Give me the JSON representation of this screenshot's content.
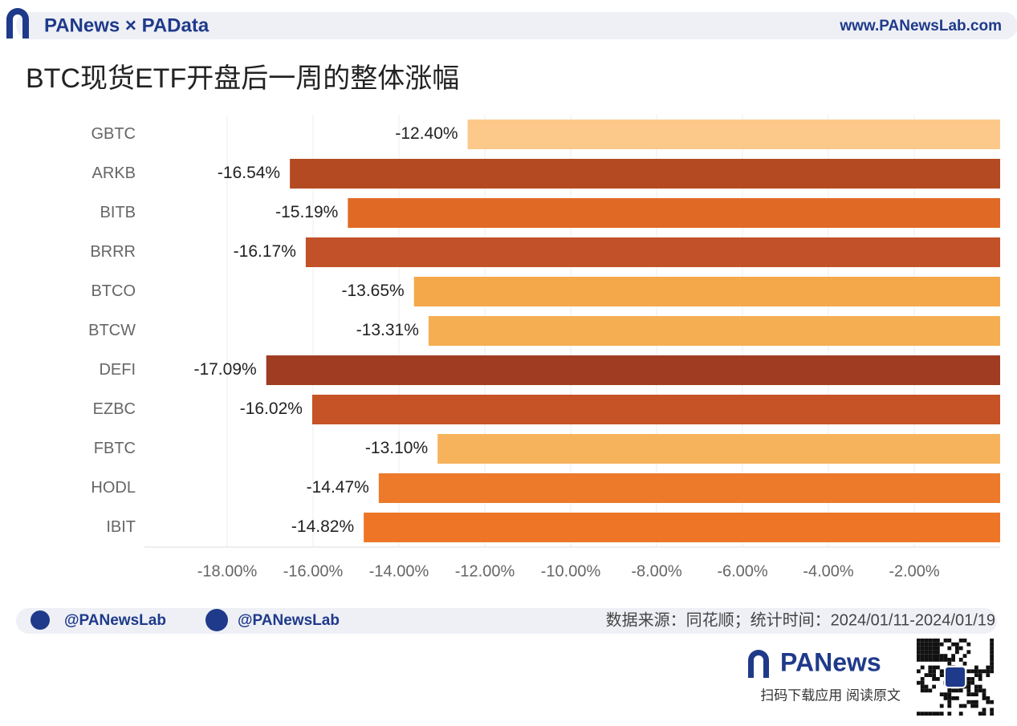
{
  "header": {
    "brand": "PANews × PAData",
    "site": "www.PANewsLab.com"
  },
  "chart_data": {
    "type": "bar",
    "orientation": "horizontal",
    "title": "BTC现货ETF开盘后一周的整体涨幅",
    "categories": [
      "GBTC",
      "ARKB",
      "BITB",
      "BRRR",
      "BTCO",
      "BTCW",
      "DEFI",
      "EZBC",
      "FBTC",
      "HODL",
      "IBIT"
    ],
    "values": [
      -12.4,
      -16.54,
      -15.19,
      -16.17,
      -13.65,
      -13.31,
      -17.09,
      -16.02,
      -13.1,
      -14.47,
      -14.82
    ],
    "value_labels": [
      "-12.40%",
      "-16.54%",
      "-15.19%",
      "-16.17%",
      "-13.65%",
      "-13.31%",
      "-17.09%",
      "-16.02%",
      "-13.10%",
      "-14.47%",
      "-14.82%"
    ],
    "colors": [
      "#fdc98a",
      "#b34a22",
      "#e06a25",
      "#c2512a",
      "#f4a84a",
      "#f5ae52",
      "#a03c22",
      "#c65325",
      "#f7b35c",
      "#ec7a2a",
      "#ee7526"
    ],
    "xlim": [
      -20,
      0
    ],
    "xticks": [
      {
        "value": -18,
        "label": "-18.00%"
      },
      {
        "value": -16,
        "label": "-16.00%"
      },
      {
        "value": -14,
        "label": "-14.00%"
      },
      {
        "value": -12,
        "label": "-12.00%"
      },
      {
        "value": -10,
        "label": "-10.00%"
      },
      {
        "value": -8,
        "label": "-8.00%"
      },
      {
        "value": -6,
        "label": "-6.00%"
      },
      {
        "value": -4,
        "label": "-4.00%"
      },
      {
        "value": -2,
        "label": "-2.00%"
      }
    ],
    "grid": true
  },
  "footer": {
    "twitter": "@PANewsLab",
    "facebook": "@PANewsLab",
    "source": "数据来源：同花顺；统计时间：2024/01/11-2024/01/19",
    "logo": "PANews",
    "qr_caption": "扫码下载应用 阅读原文"
  }
}
